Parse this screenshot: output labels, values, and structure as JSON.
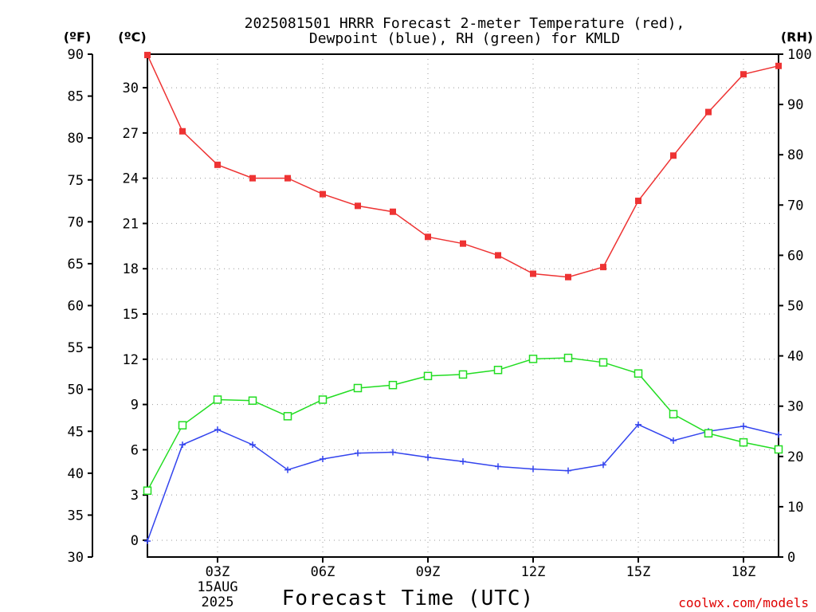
{
  "chart_data": {
    "type": "line",
    "title": [
      "2025081501 HRRR Forecast 2-meter Temperature (red),",
      "Dewpoint (blue), RH (green) for KMLD"
    ],
    "xlabel": "Forecast Time (UTC)",
    "credit": "coolwx.com/models",
    "units": {
      "left_outer": "(ºF)",
      "left_inner": "(ºC)",
      "right": "(RH)"
    },
    "x": [
      "01Z",
      "02Z",
      "03Z",
      "04Z",
      "05Z",
      "06Z",
      "07Z",
      "08Z",
      "09Z",
      "10Z",
      "11Z",
      "12Z",
      "13Z",
      "14Z",
      "15Z",
      "16Z",
      "17Z",
      "18Z",
      "19Z"
    ],
    "x_ticks": [
      {
        "label": "03Z",
        "x": "03Z",
        "sub": [
          "15AUG",
          "2025"
        ]
      },
      {
        "label": "06Z",
        "x": "06Z",
        "sub": []
      },
      {
        "label": "09Z",
        "x": "09Z",
        "sub": []
      },
      {
        "label": "12Z",
        "x": "12Z",
        "sub": []
      },
      {
        "label": "15Z",
        "x": "15Z",
        "sub": []
      },
      {
        "label": "18Z",
        "x": "18Z",
        "sub": []
      }
    ],
    "y_f_ticks": [
      30,
      35,
      40,
      45,
      50,
      55,
      60,
      65,
      70,
      75,
      80,
      85,
      90
    ],
    "y_c_ticks": [
      0,
      3,
      6,
      9,
      12,
      15,
      18,
      21,
      24,
      27,
      30
    ],
    "y_rh_ticks": [
      0,
      10,
      20,
      30,
      40,
      50,
      60,
      70,
      80,
      90,
      100
    ],
    "ylim_f": [
      30,
      90
    ],
    "ylim_rh": [
      0,
      100
    ],
    "grid": true,
    "series": [
      {
        "name": "Temperature",
        "unit": "F",
        "color": "#ee3333",
        "marker": "filled-square",
        "values": [
          89.9,
          80.8,
          76.8,
          75.2,
          75.2,
          73.3,
          71.9,
          71.2,
          68.2,
          67.4,
          66.0,
          63.8,
          63.4,
          64.6,
          72.5,
          77.9,
          83.1,
          87.6,
          88.6
        ]
      },
      {
        "name": "Dewpoint",
        "unit": "F",
        "color": "#3344ee",
        "marker": "plus",
        "values": [
          31.9,
          43.4,
          45.2,
          43.4,
          40.4,
          41.7,
          42.4,
          42.5,
          41.9,
          41.4,
          40.8,
          40.5,
          40.3,
          41.0,
          45.8,
          43.9,
          45.0,
          45.6,
          44.6
        ]
      },
      {
        "name": "RH",
        "unit": "%",
        "color": "#22dd22",
        "marker": "open-square",
        "values": [
          13.2,
          26.2,
          31.3,
          31.1,
          28.0,
          31.3,
          33.6,
          34.2,
          36.0,
          36.3,
          37.2,
          39.4,
          39.6,
          38.7,
          36.5,
          28.4,
          24.6,
          22.8,
          21.4
        ]
      }
    ]
  }
}
